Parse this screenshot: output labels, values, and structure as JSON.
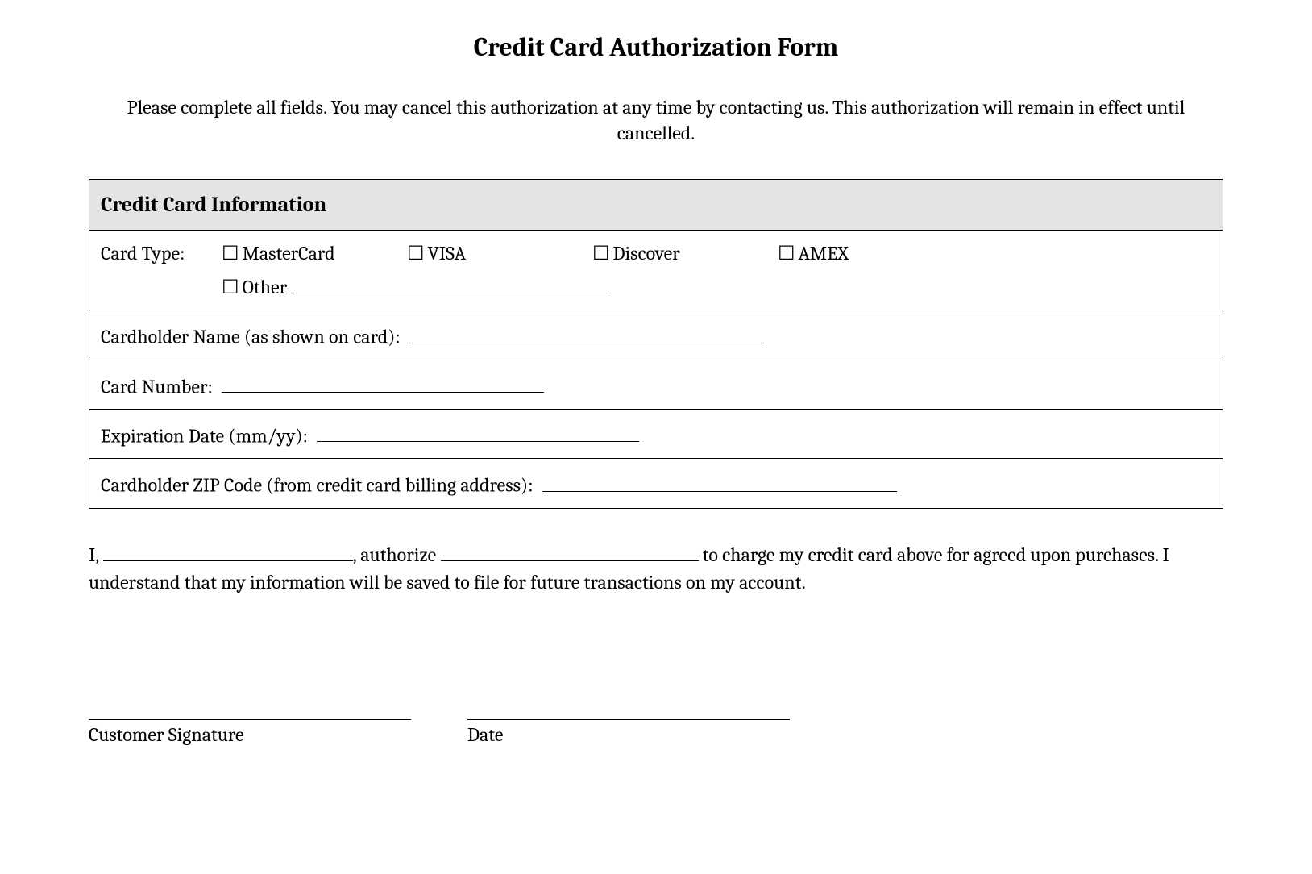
{
  "title": "Credit Card Authorization Form",
  "intro": "Please complete all fields. You may cancel this authorization at any time by contacting us. This authorization will remain in effect until cancelled.",
  "section_header": "Credit Card Information",
  "card_type_label": "Card Type:",
  "card_types": {
    "mastercard": "MasterCard",
    "visa": "VISA",
    "discover": "Discover",
    "amex": "AMEX",
    "other": "Other"
  },
  "fields": {
    "cardholder_name": "Cardholder Name (as shown on card):",
    "card_number": "Card Number:",
    "expiration": "Expiration Date (mm/yy):",
    "zip": "Cardholder ZIP Code (from credit card billing address):"
  },
  "authorization": {
    "prefix": "I,",
    "mid1": ", authorize",
    "mid2": "to charge my credit card above for agreed upon purchases. I understand that my information will be saved to file for future transactions on my account."
  },
  "signature_label": "Customer Signature",
  "date_label": "Date",
  "colors": {
    "header_bg": "#e4e4e4",
    "border": "#000000",
    "text": "#000000",
    "background": "#ffffff"
  },
  "typography": {
    "title_fontsize": 32,
    "body_fontsize": 24,
    "section_header_fontsize": 26,
    "font_family": "Cambria, Georgia, serif"
  },
  "checkbox_glyph": "☐"
}
